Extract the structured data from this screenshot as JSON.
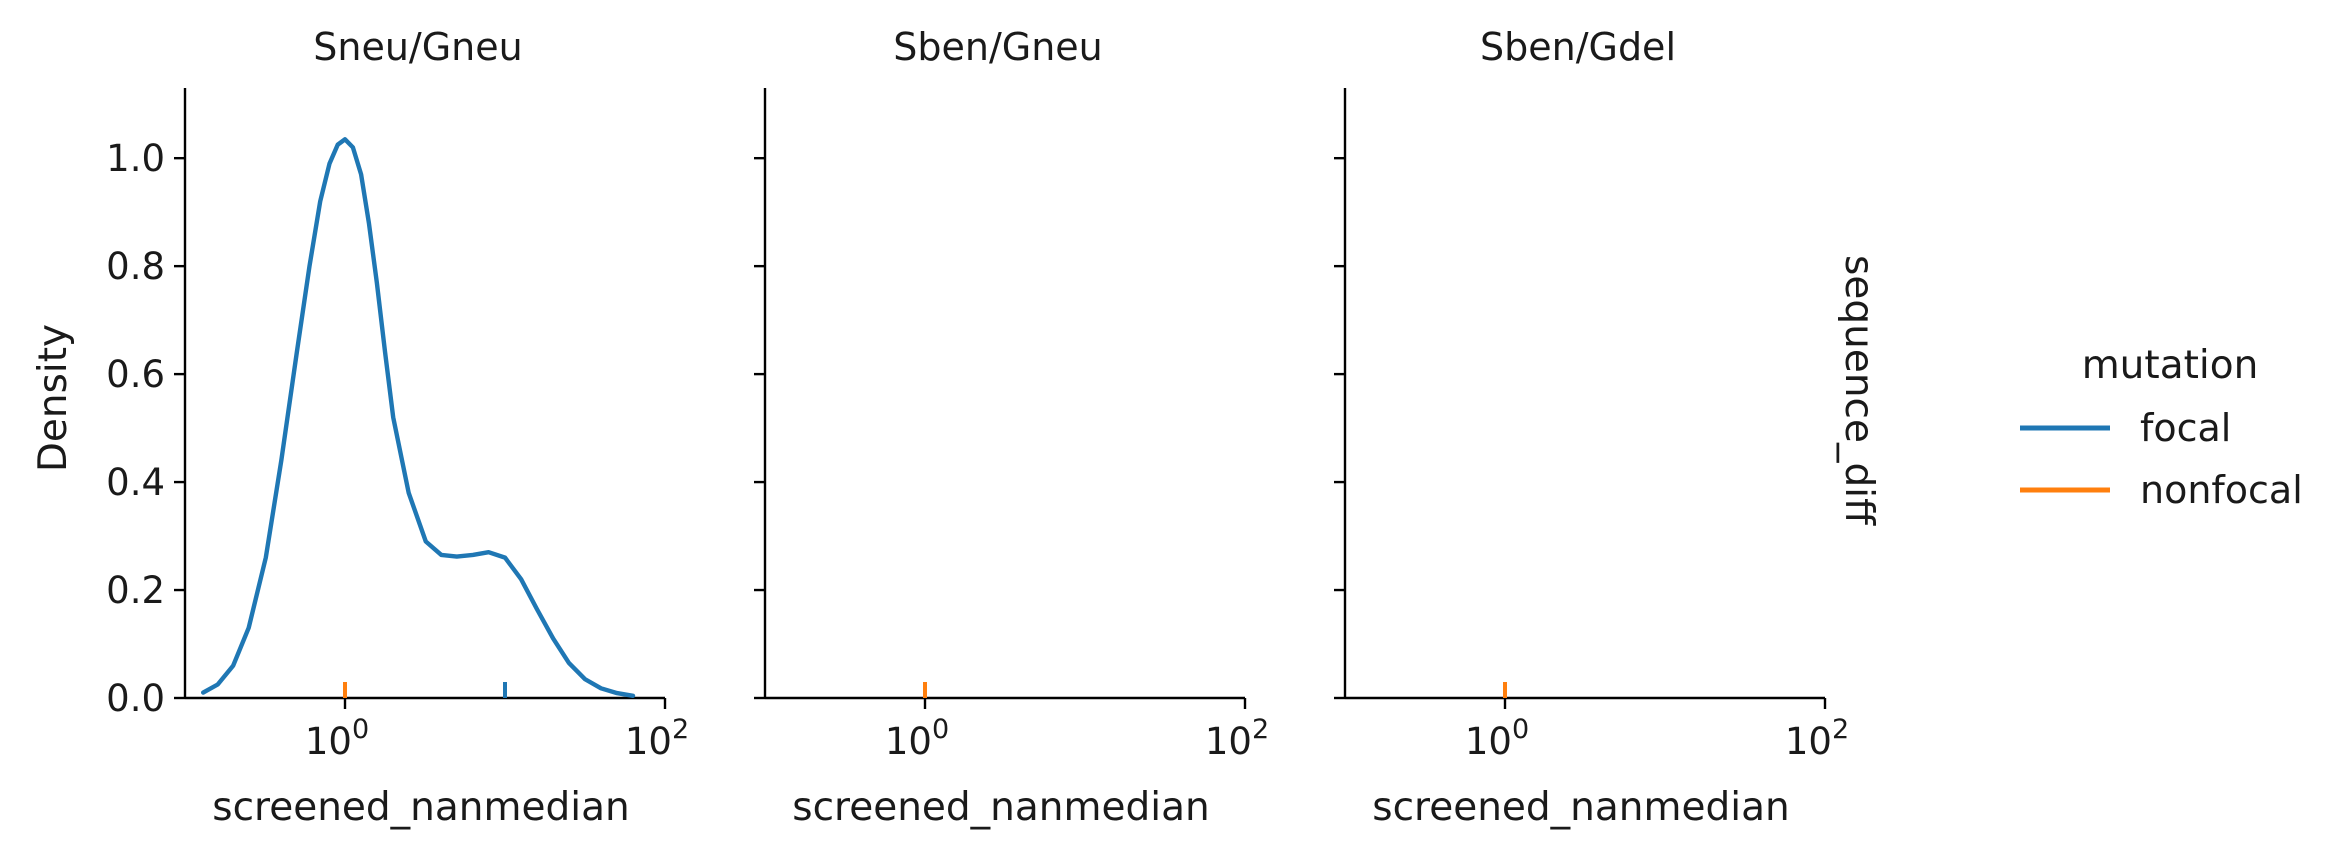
{
  "chart_data": {
    "type": "line",
    "kind": "kde-facet-grid",
    "x_scale": "log",
    "xlim": [
      0.1,
      100
    ],
    "ylim": [
      0,
      1.13
    ],
    "xlabel": "screened_nanmedian",
    "ylabel": "Density",
    "row_label": "sequence_diff",
    "x_ticks": [
      {
        "value": 1,
        "base": "10",
        "exp": "0"
      },
      {
        "value": 100,
        "base": "10",
        "exp": "2"
      }
    ],
    "y_ticks": [
      {
        "value": 0.0,
        "label": "0.0"
      },
      {
        "value": 0.2,
        "label": "0.2"
      },
      {
        "value": 0.4,
        "label": "0.4"
      },
      {
        "value": 0.6,
        "label": "0.6"
      },
      {
        "value": 0.8,
        "label": "0.8"
      },
      {
        "value": 1.0,
        "label": "1.0"
      }
    ],
    "legend": {
      "title": "mutation",
      "placement": "right",
      "entries": [
        {
          "name": "focal",
          "color": "#1f77b4"
        },
        {
          "name": "nonfocal",
          "color": "#ff7f0e"
        }
      ]
    },
    "panels": [
      {
        "title": "Sneu/Gneu",
        "series": [
          {
            "name": "focal",
            "color": "#1f77b4",
            "curve": {
              "x": [
                0.13,
                0.16,
                0.2,
                0.25,
                0.32,
                0.4,
                0.5,
                0.6,
                0.7,
                0.8,
                0.9,
                1.0,
                1.12,
                1.26,
                1.41,
                1.58,
                1.78,
                2.0,
                2.5,
                3.2,
                4.0,
                5.0,
                6.3,
                7.9,
                10.0,
                12.6,
                15.8,
                20.0,
                25.1,
                31.6,
                39.8,
                50.1,
                63.1
              ],
              "y": [
                0.01,
                0.025,
                0.06,
                0.13,
                0.26,
                0.44,
                0.64,
                0.8,
                0.92,
                0.99,
                1.025,
                1.035,
                1.02,
                0.97,
                0.88,
                0.77,
                0.64,
                0.52,
                0.38,
                0.29,
                0.265,
                0.262,
                0.265,
                0.27,
                0.26,
                0.22,
                0.165,
                0.11,
                0.065,
                0.035,
                0.018,
                0.009,
                0.004
              ]
            },
            "rug": [
              1.0,
              10.0
            ]
          },
          {
            "name": "nonfocal",
            "color": "#ff7f0e",
            "rug": [
              1.0
            ]
          }
        ]
      },
      {
        "title": "Sben/Gneu",
        "series": [
          {
            "name": "nonfocal",
            "color": "#ff7f0e",
            "rug": [
              1.0
            ]
          }
        ]
      },
      {
        "title": "Sben/Gdel",
        "series": [
          {
            "name": "nonfocal",
            "color": "#ff7f0e",
            "rug": [
              1.0
            ]
          }
        ]
      }
    ]
  }
}
